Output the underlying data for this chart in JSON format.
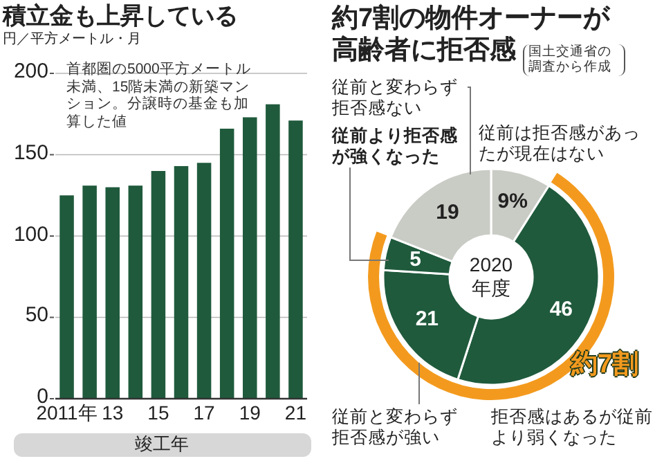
{
  "chart_data": [
    {
      "type": "bar",
      "title": "積立金も上昇している",
      "ylabel": "円／平方メートル・月",
      "xlabel": "竣工年",
      "categories": [
        "2011年",
        null,
        "13",
        null,
        "15",
        null,
        "17",
        null,
        "19",
        null,
        "21"
      ],
      "values": [
        125,
        131,
        130,
        131,
        140,
        143,
        145,
        166,
        173,
        181,
        171
      ],
      "color": "#1f5a3c",
      "ylim": [
        0,
        200
      ],
      "yticks": [
        0,
        50,
        100,
        150,
        200
      ],
      "grid": "y",
      "annotations": [
        "首都圏の5000平方メートル未満、15階未満の新築マンション。分譲時の基金も加算した値"
      ]
    },
    {
      "type": "donut",
      "title": "約7割の物件オーナーが高齢者に拒否感",
      "categories": [
        "従前は拒否感があったが現在はない",
        "拒否感はあるが従前より弱くなった",
        "従前と変わらず拒否感が強い",
        "従前より拒否感が強くなった",
        "従前と変わらず拒否感ない"
      ],
      "values": [
        9,
        46,
        21,
        5,
        19
      ],
      "value_labels": [
        "9%",
        "46",
        "21",
        "5",
        "19"
      ],
      "colors": [
        "#c9cbc5",
        "#1f5a3c",
        "#1f5a3c",
        "#1f5a3c",
        "#c9cbc5"
      ],
      "annotations": [
        "2020年度",
        "約7割",
        "国土交通省の調査から作成"
      ]
    }
  ]
}
